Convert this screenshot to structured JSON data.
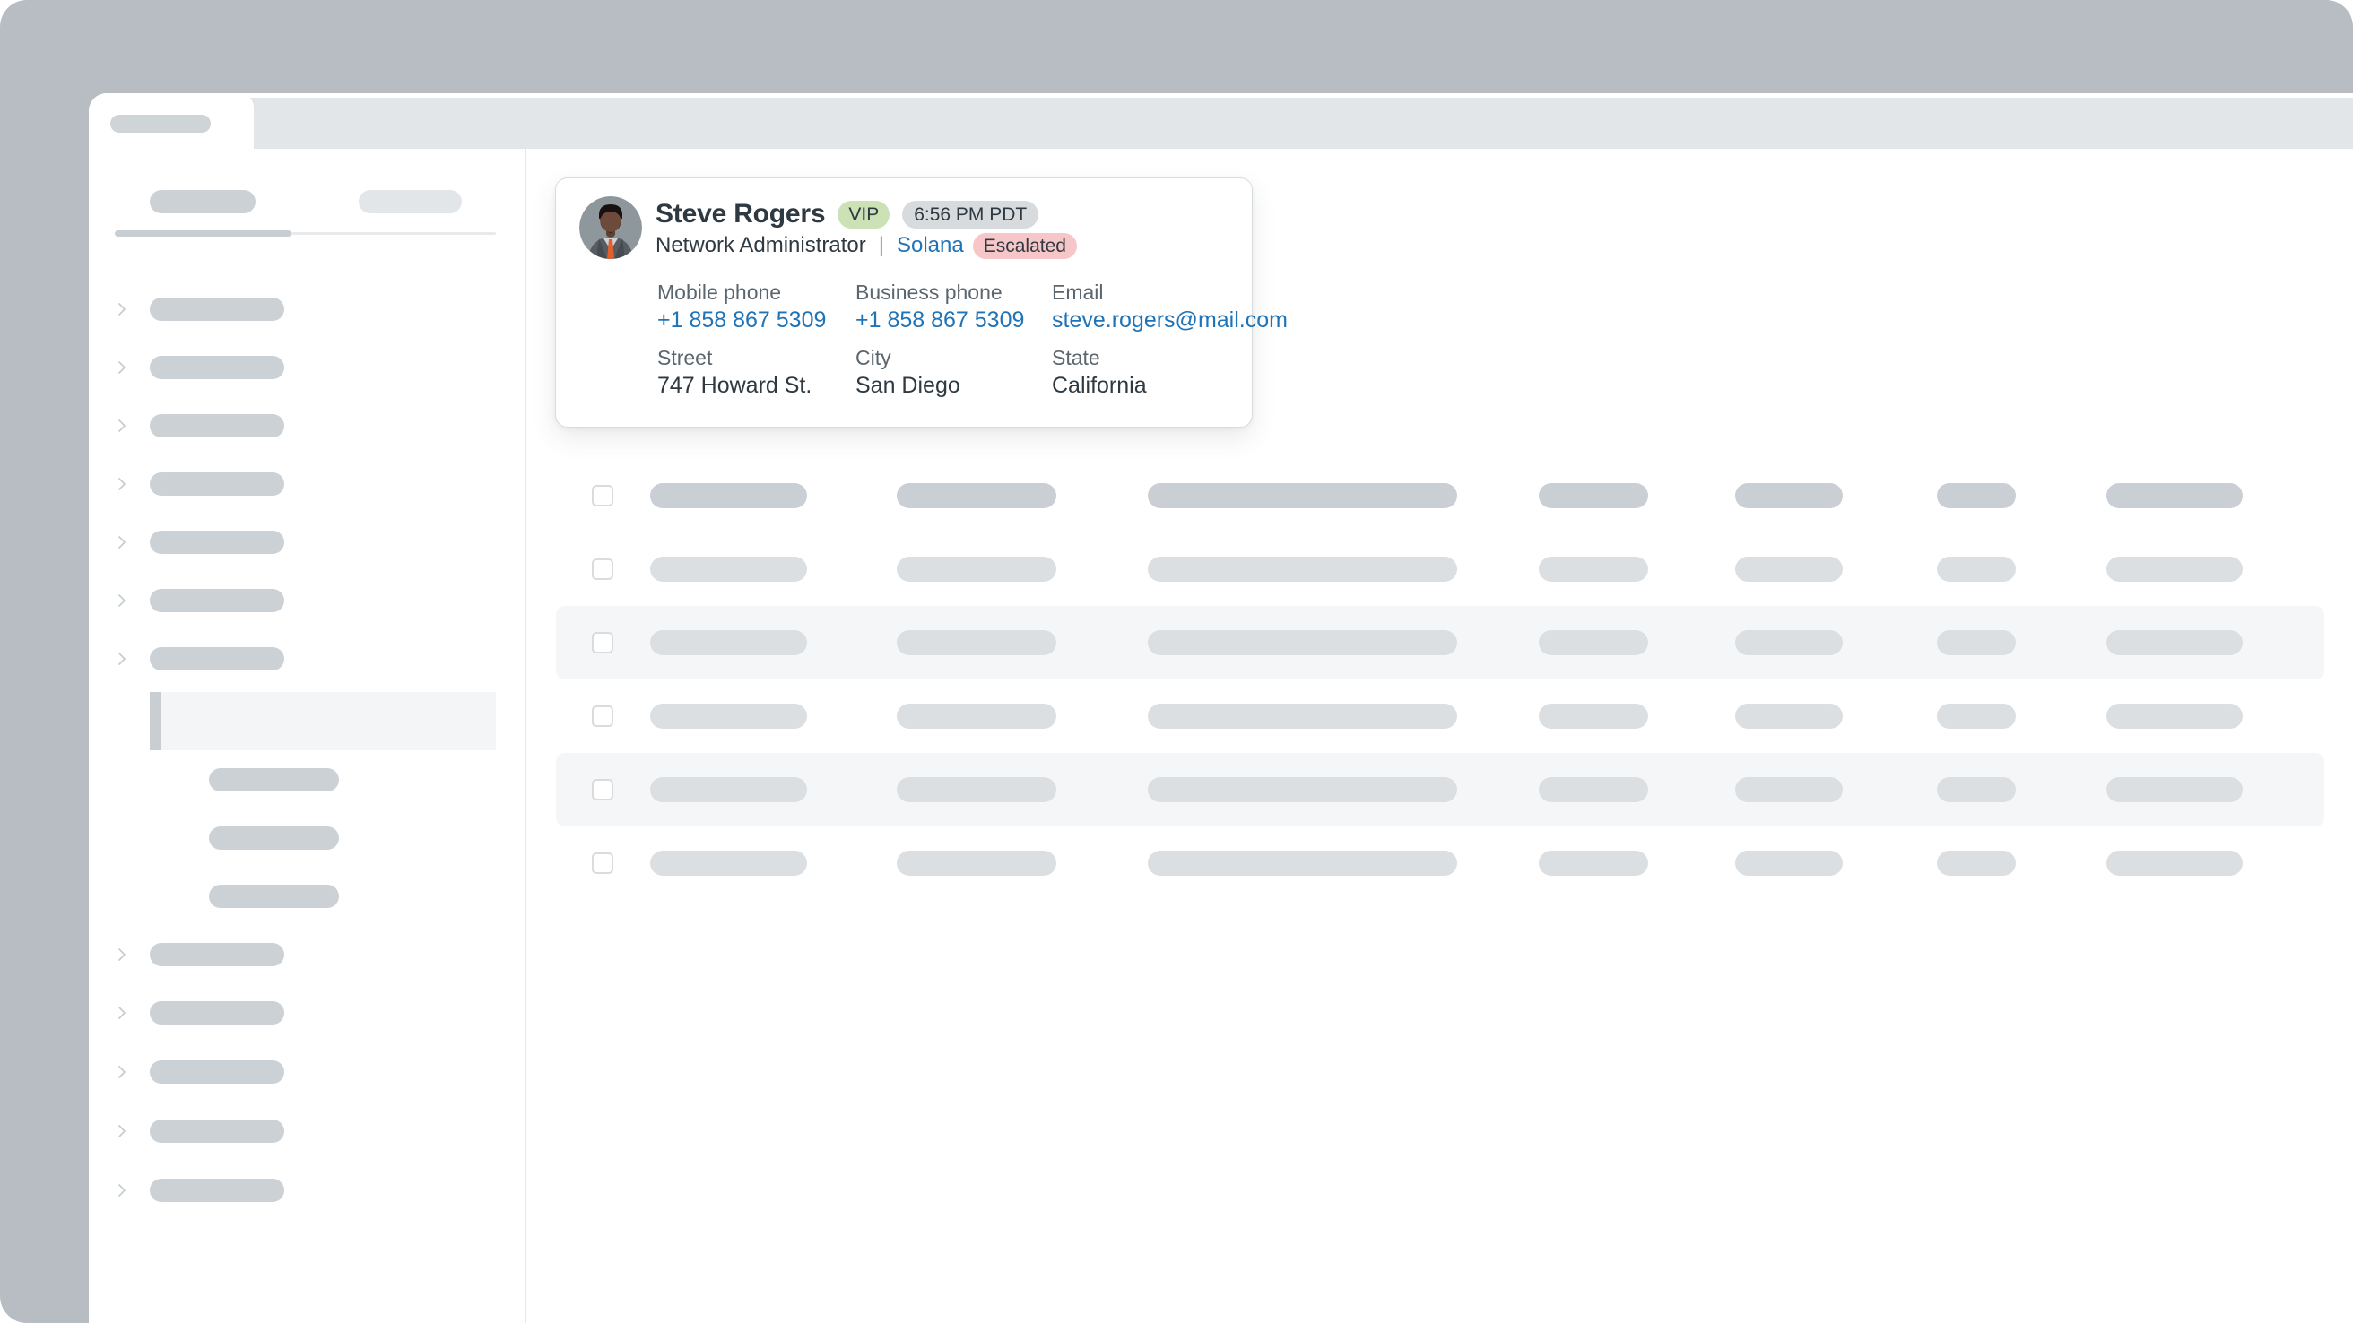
{
  "contact_card": {
    "name": "Steve Rogers",
    "vip_badge": "VIP",
    "local_time": "6:56 PM PDT",
    "job_title": "Network Administrator",
    "separator": "|",
    "organization": "Solana",
    "status_badge": "Escalated",
    "fields": [
      {
        "label": "Mobile phone",
        "value": "+1 858 867 5309",
        "type": "link"
      },
      {
        "label": "Business phone",
        "value": "+1 858 867 5309",
        "type": "link"
      },
      {
        "label": "Email",
        "value": "steve.rogers@mail.com",
        "type": "link"
      },
      {
        "label": "Street",
        "value": "747 Howard St.",
        "type": "text"
      },
      {
        "label": "City",
        "value": "San Diego",
        "type": "text"
      },
      {
        "label": "State",
        "value": "California",
        "type": "text"
      }
    ]
  },
  "colors": {
    "link_blue": "#1f73b7",
    "vip_badge_bg": "#cce1b5",
    "time_badge_bg": "#d8dbdd",
    "escalated_badge_bg": "#f7c6c8",
    "text_primary": "#2f3941",
    "text_secondary": "#5b666e",
    "outer_background": "#b7bdc2",
    "tab_bar": "#e3e6e8",
    "skeleton_dark": "#c9cfd4",
    "skeleton_light": "#dcdfe2",
    "row_highlight": "#f4f6f7"
  }
}
